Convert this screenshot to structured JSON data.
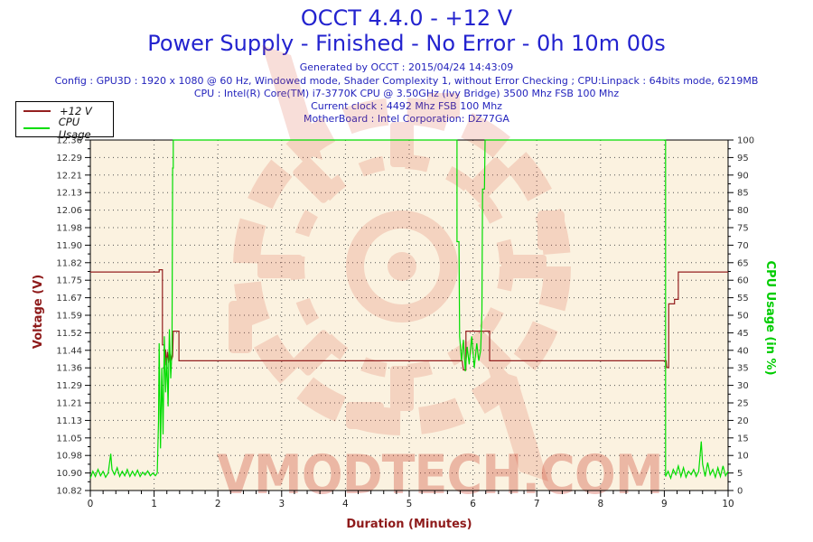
{
  "header": {
    "title_line1": "OCCT 4.4.0 - +12 V",
    "title_line2": "Power Supply - Finished - No Error - 0h 10m 00s",
    "generated": "Generated by OCCT : 2015/04/24 14:43:09",
    "config": "Config : GPU3D : 1920 x 1080 @ 60 Hz, Windowed mode, Shader Complexity 1, without Error Checking ; CPU:Linpack : 64bits mode, 6219MB",
    "cpu": "CPU : Intel(R) Core(TM) i7-3770K CPU @ 3.50GHz (Ivy Bridge) 3500 Mhz FSB 100 Mhz",
    "current_clock": "Current clock : 4492 Mhz FSB 100 Mhz",
    "motherboard": "MotherBoard : Intel Corporation: DZ77GA"
  },
  "legend": {
    "items": [
      {
        "label": "+12 V",
        "color": "#941f1f"
      },
      {
        "label": "CPU Usage",
        "color": "#00dd00"
      }
    ]
  },
  "watermark": {
    "text": "VMODTECH.COM"
  },
  "colors": {
    "title_blue": "#2323cf",
    "voltage_red": "#941f1f",
    "cpu_green": "#00dd00",
    "plot_background": "#fbf2e0",
    "watermark_red": "#d94c33"
  },
  "chart_data": {
    "type": "line",
    "title": "OCCT 4.4.0 - +12 V — Power Supply - Finished - No Error - 0h 10m 00s",
    "xlabel": "Duration (Minutes)",
    "ylabel_left": "Voltage (V)",
    "ylabel_right": "CPU Usage (in %)",
    "x_range": [
      0,
      10
    ],
    "y_left_range": [
      10.82,
      12.36
    ],
    "y_right_range": [
      0,
      100
    ],
    "grid": true,
    "legend_position": "top-left",
    "x_tick_labels": [
      "0",
      "1",
      "2",
      "3",
      "4",
      "5",
      "6",
      "7",
      "8",
      "9",
      "10"
    ],
    "y_left_tick_labels": [
      "12.36",
      "12.29",
      "12.21",
      "12.13",
      "12.06",
      "11.98",
      "11.90",
      "11.82",
      "11.75",
      "11.67",
      "11.59",
      "11.52",
      "11.44",
      "11.36",
      "11.29",
      "11.21",
      "11.13",
      "11.05",
      "10.98",
      "10.90",
      "10.82"
    ],
    "y_right_tick_labels": [
      "100",
      "95",
      "90",
      "85",
      "80",
      "75",
      "70",
      "65",
      "60",
      "55",
      "50",
      "45",
      "40",
      "35",
      "30",
      "25",
      "20",
      "15",
      "10",
      "5",
      "0"
    ],
    "series": [
      {
        "name": "+12 V",
        "axis": "left",
        "color": "#941f1f",
        "points": [
          [
            0,
            11.78
          ],
          [
            1.08,
            11.78
          ],
          [
            1.08,
            11.79
          ],
          [
            1.13,
            11.79
          ],
          [
            1.13,
            11.46
          ],
          [
            1.16,
            11.46
          ],
          [
            1.16,
            11.4
          ],
          [
            1.18,
            11.44
          ],
          [
            1.19,
            11.37
          ],
          [
            1.21,
            11.43
          ],
          [
            1.23,
            11.38
          ],
          [
            1.25,
            11.42
          ],
          [
            1.27,
            11.39
          ],
          [
            1.29,
            11.41
          ],
          [
            1.3,
            11.52
          ],
          [
            1.39,
            11.52
          ],
          [
            1.39,
            11.39
          ],
          [
            5.83,
            11.39
          ],
          [
            5.85,
            11.35
          ],
          [
            5.89,
            11.35
          ],
          [
            5.89,
            11.52
          ],
          [
            6.26,
            11.52
          ],
          [
            6.26,
            11.39
          ],
          [
            9.03,
            11.39
          ],
          [
            9.04,
            11.36
          ],
          [
            9.07,
            11.36
          ],
          [
            9.07,
            11.64
          ],
          [
            9.16,
            11.64
          ],
          [
            9.16,
            11.66
          ],
          [
            9.22,
            11.66
          ],
          [
            9.22,
            11.78
          ],
          [
            10,
            11.78
          ]
        ]
      },
      {
        "name": "CPU Usage",
        "axis": "right",
        "color": "#00dd00",
        "points": [
          [
            0,
            3.5
          ],
          [
            0.04,
            5.5
          ],
          [
            0.08,
            4
          ],
          [
            0.12,
            6
          ],
          [
            0.16,
            4.2
          ],
          [
            0.2,
            5.5
          ],
          [
            0.24,
            3.8
          ],
          [
            0.28,
            5
          ],
          [
            0.32,
            10.5
          ],
          [
            0.34,
            6
          ],
          [
            0.38,
            4.5
          ],
          [
            0.42,
            6.5
          ],
          [
            0.46,
            4
          ],
          [
            0.5,
            5.5
          ],
          [
            0.54,
            4.2
          ],
          [
            0.58,
            6
          ],
          [
            0.62,
            4
          ],
          [
            0.66,
            5.5
          ],
          [
            0.7,
            4.2
          ],
          [
            0.74,
            5.8
          ],
          [
            0.78,
            4
          ],
          [
            0.82,
            5.2
          ],
          [
            0.86,
            4.4
          ],
          [
            0.9,
            5.6
          ],
          [
            0.94,
            4.2
          ],
          [
            0.98,
            5
          ],
          [
            1.02,
            4.2
          ],
          [
            1.05,
            5
          ],
          [
            1.07,
            20
          ],
          [
            1.08,
            42
          ],
          [
            1.1,
            12
          ],
          [
            1.12,
            35
          ],
          [
            1.14,
            16
          ],
          [
            1.16,
            44
          ],
          [
            1.18,
            28
          ],
          [
            1.2,
            38
          ],
          [
            1.22,
            24
          ],
          [
            1.24,
            46
          ],
          [
            1.26,
            32
          ],
          [
            1.28,
            40
          ],
          [
            1.29,
            92
          ],
          [
            1.3,
            92
          ],
          [
            1.3,
            100
          ],
          [
            5.75,
            100
          ],
          [
            5.75,
            71
          ],
          [
            5.78,
            71
          ],
          [
            5.79,
            44
          ],
          [
            5.82,
            37
          ],
          [
            5.85,
            43
          ],
          [
            5.88,
            34
          ],
          [
            5.91,
            41
          ],
          [
            5.94,
            36
          ],
          [
            5.98,
            44
          ],
          [
            6.02,
            35
          ],
          [
            6.06,
            42
          ],
          [
            6.09,
            37
          ],
          [
            6.12,
            40
          ],
          [
            6.14,
            51
          ],
          [
            6.15,
            86
          ],
          [
            6.18,
            86
          ],
          [
            6.19,
            100
          ],
          [
            9.02,
            100
          ],
          [
            9.02,
            4
          ],
          [
            9.06,
            5.5
          ],
          [
            9.1,
            3.5
          ],
          [
            9.14,
            6
          ],
          [
            9.18,
            4.5
          ],
          [
            9.22,
            7
          ],
          [
            9.26,
            4
          ],
          [
            9.3,
            6.5
          ],
          [
            9.34,
            3.8
          ],
          [
            9.38,
            5.5
          ],
          [
            9.42,
            4.5
          ],
          [
            9.46,
            6
          ],
          [
            9.5,
            4
          ],
          [
            9.54,
            5.5
          ],
          [
            9.58,
            14
          ],
          [
            9.6,
            7.5
          ],
          [
            9.64,
            4
          ],
          [
            9.68,
            8
          ],
          [
            9.72,
            4.5
          ],
          [
            9.76,
            6
          ],
          [
            9.8,
            3.8
          ],
          [
            9.84,
            6.5
          ],
          [
            9.88,
            4
          ],
          [
            9.92,
            7
          ],
          [
            9.96,
            4.2
          ],
          [
            10,
            5.5
          ]
        ]
      }
    ]
  }
}
